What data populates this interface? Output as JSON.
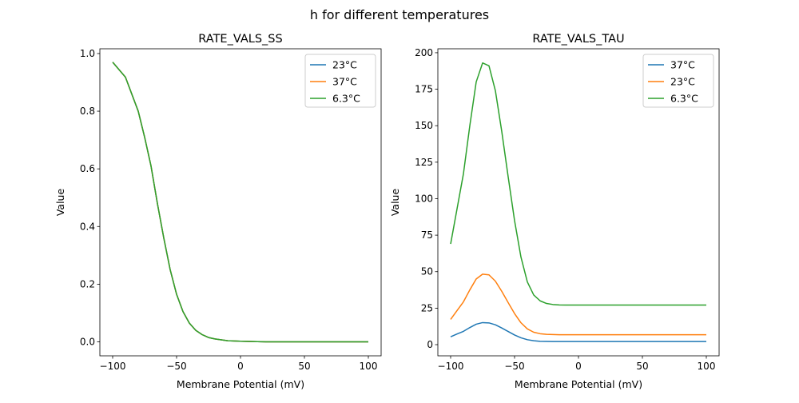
{
  "figure": {
    "suptitle": "h for different temperatures"
  },
  "chart_data": [
    {
      "type": "line",
      "title": "RATE_VALS_SS",
      "xlabel": "Membrane Potential (mV)",
      "ylabel": "Value",
      "xlim": [
        -110,
        110
      ],
      "ylim": [
        -0.0485,
        1.0165
      ],
      "xticks": [
        -100,
        -50,
        0,
        50,
        100
      ],
      "yticks": [
        0.0,
        0.2,
        0.4,
        0.6,
        0.8,
        1.0
      ],
      "ytick_labels": [
        "0.0",
        "0.2",
        "0.4",
        "0.6",
        "0.8",
        "1.0"
      ],
      "grid": false,
      "legend_position": "top-right",
      "x": [
        -100,
        -90,
        -80,
        -75,
        -70,
        -65,
        -60,
        -55,
        -50,
        -45,
        -40,
        -35,
        -30,
        -25,
        -20,
        -10,
        0,
        10,
        20,
        40,
        60,
        80,
        100
      ],
      "series": [
        {
          "name": "23°C",
          "color": "#1f77b4",
          "values": [
            0.97,
            0.918,
            0.8,
            0.71,
            0.61,
            0.48,
            0.36,
            0.25,
            0.165,
            0.105,
            0.065,
            0.04,
            0.025,
            0.015,
            0.01,
            0.004,
            0.002,
            0.001,
            0.0,
            0.0,
            0.0,
            0.0,
            0.0
          ]
        },
        {
          "name": "37°C",
          "color": "#ff7f0e",
          "values": [
            0.97,
            0.918,
            0.8,
            0.71,
            0.61,
            0.48,
            0.36,
            0.25,
            0.165,
            0.105,
            0.065,
            0.04,
            0.025,
            0.015,
            0.01,
            0.004,
            0.002,
            0.001,
            0.0,
            0.0,
            0.0,
            0.0,
            0.0
          ]
        },
        {
          "name": "6.3°C",
          "color": "#2ca02c",
          "values": [
            0.97,
            0.918,
            0.8,
            0.71,
            0.61,
            0.48,
            0.36,
            0.25,
            0.165,
            0.105,
            0.065,
            0.04,
            0.025,
            0.015,
            0.01,
            0.004,
            0.002,
            0.001,
            0.0,
            0.0,
            0.0,
            0.0,
            0.0
          ]
        }
      ]
    },
    {
      "type": "line",
      "title": "RATE_VALS_TAU",
      "xlabel": "Membrane Potential (mV)",
      "ylabel": "Value",
      "xlim": [
        -110,
        110
      ],
      "ylim": [
        -7.66,
        202.7
      ],
      "xticks": [
        -100,
        -50,
        0,
        50,
        100
      ],
      "yticks": [
        0,
        25,
        50,
        75,
        100,
        125,
        150,
        175,
        200
      ],
      "ytick_labels": [
        "0",
        "25",
        "50",
        "75",
        "100",
        "125",
        "150",
        "175",
        "200"
      ],
      "grid": false,
      "legend_position": "top-right",
      "x": [
        -100,
        -95,
        -90,
        -85,
        -80,
        -75,
        -70,
        -65,
        -60,
        -55,
        -50,
        -45,
        -40,
        -35,
        -30,
        -25,
        -20,
        -15,
        -10,
        0,
        100
      ],
      "series": [
        {
          "name": "37°C",
          "color": "#1f77b4",
          "values": [
            5.4,
            7.3,
            9.1,
            11.7,
            14.0,
            15.1,
            14.9,
            13.6,
            11.4,
            9.0,
            6.6,
            4.7,
            3.4,
            2.7,
            2.3,
            2.2,
            2.15,
            2.1,
            2.1,
            2.1,
            2.1
          ]
        },
        {
          "name": "23°C",
          "color": "#ff7f0e",
          "values": [
            17.3,
            23.3,
            29.3,
            37.5,
            45.0,
            48.3,
            47.8,
            43.5,
            36.5,
            28.8,
            21.3,
            15.0,
            10.8,
            8.5,
            7.5,
            7.05,
            6.9,
            6.8,
            6.8,
            6.8,
            6.8
          ]
        },
        {
          "name": "6.3°C",
          "color": "#2ca02c",
          "values": [
            69,
            93,
            117,
            150,
            180,
            193,
            191,
            174,
            146,
            115,
            85,
            60,
            43,
            34,
            30,
            28.2,
            27.5,
            27.2,
            27.1,
            27.1,
            27.1
          ]
        }
      ]
    }
  ]
}
